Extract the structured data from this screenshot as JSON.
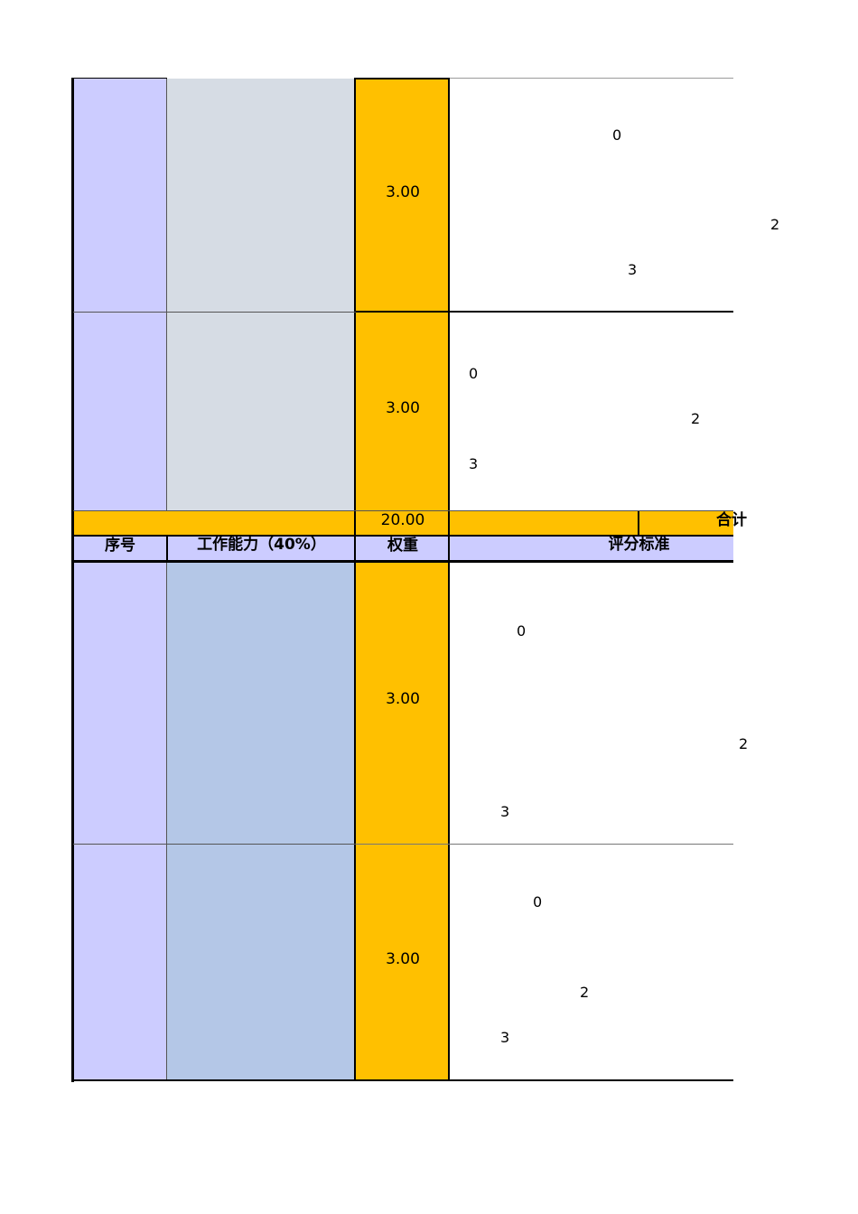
{
  "section_top": {
    "rows": [
      {
        "weight": "3.00",
        "scores": [
          "0",
          "2",
          "3"
        ]
      },
      {
        "weight": "3.00",
        "scores": [
          "0",
          "2",
          "3"
        ]
      }
    ]
  },
  "subtotal_row": {
    "weight_total": "20.00",
    "label": "合计"
  },
  "header": {
    "col_index": "序号",
    "col_item": "工作能力（40%）",
    "col_weight": "权重",
    "col_criteria": "评分标准"
  },
  "section_bottom": {
    "rows": [
      {
        "weight": "3.00",
        "scores": [
          "0",
          "2",
          "3"
        ]
      },
      {
        "weight": "3.00",
        "scores": [
          "0",
          "2",
          "3"
        ]
      }
    ]
  },
  "colors": {
    "index_col": "#ccccff",
    "item_col_top": "#d6dce4",
    "item_col_bottom": "#b4c7e7",
    "weight_col": "#ffc000",
    "header_row": "#ccccff"
  }
}
